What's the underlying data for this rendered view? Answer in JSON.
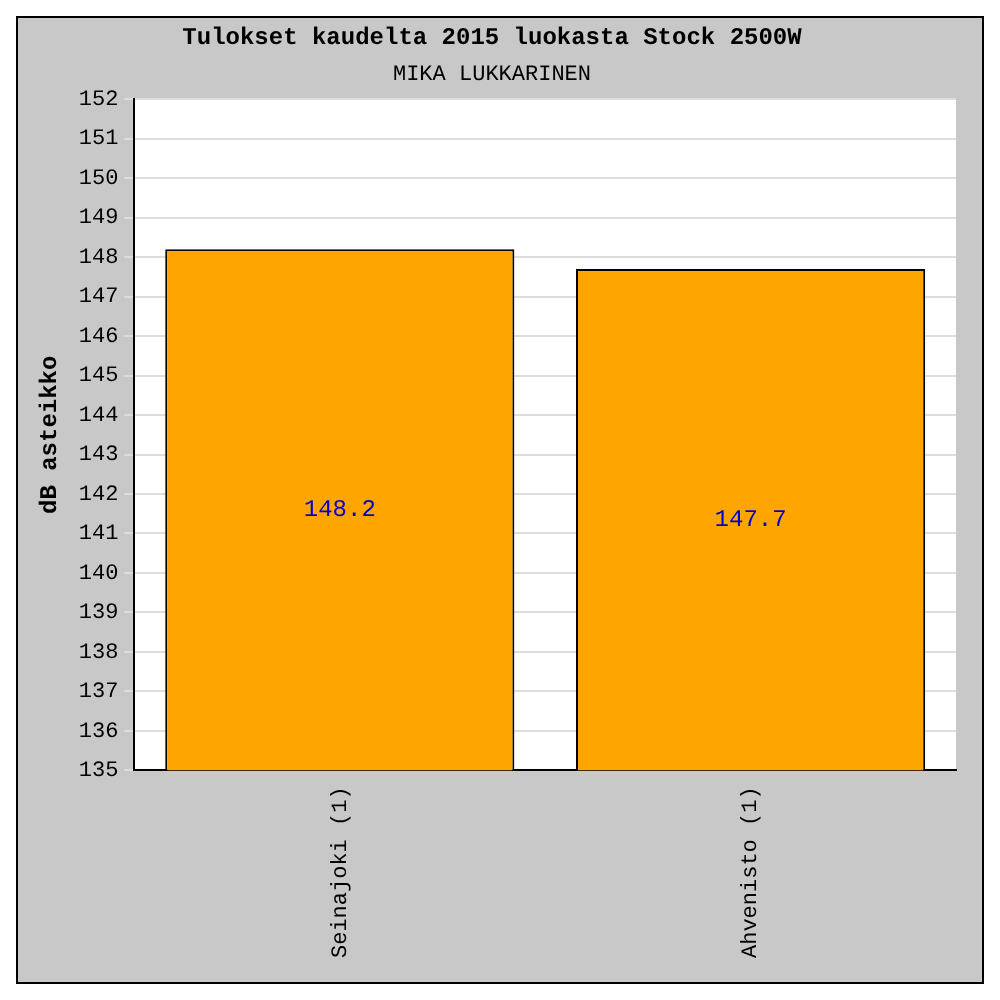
{
  "chart_data": {
    "type": "bar",
    "title": "Tulokset kaudelta 2015 luokasta Stock 2500W",
    "subtitle": "MIKA LUKKARINEN",
    "ylabel": "dB asteikko",
    "categories": [
      "Seinajoki (1)",
      "Ahvenisto (1)"
    ],
    "values": [
      148.2,
      147.7
    ],
    "color": "#ffa500",
    "ylim": [
      135,
      152
    ],
    "yticks": [
      135,
      136,
      137,
      138,
      139,
      140,
      141,
      142,
      143,
      144,
      145,
      146,
      147,
      148,
      149,
      150,
      151,
      152
    ],
    "grid": "y",
    "data_labels": true
  }
}
